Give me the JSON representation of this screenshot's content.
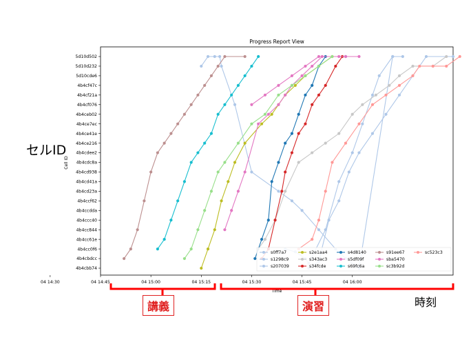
{
  "chart_data": {
    "type": "scatter",
    "title": "Progress Report View",
    "xlabel": "Time",
    "ylabel": "Cell ID",
    "x_ticks": [
      "04 14:30",
      "04 14:45",
      "04 15:00",
      "04 15:15",
      "04 15:30",
      "04 15:45",
      "04 16:00"
    ],
    "categories": [
      "5d10d502",
      "5d10d232",
      "5d10cde6",
      "4b4cf47c",
      "4b4cf21a",
      "4b4cf076",
      "4b4ceb02",
      "4b4ce7ec",
      "4b4ce41e",
      "4b4ce216",
      "4b4cdee2",
      "4b4cdc8a",
      "4b4cd938",
      "4b4cd41a",
      "4b4cd23a",
      "4b4ccf62",
      "4b4ccdda",
      "4b4ccc40",
      "4b4cc844",
      "4b4cc61e",
      "4b4cc0f6",
      "4b4cbdcc",
      "4b4cbb74"
    ],
    "legend_position": "lower-right",
    "grid": false,
    "series": [
      {
        "name": "s0ff7a7",
        "color": "#aec7e8",
        "points": [
          [
            40,
            20
          ],
          [
            43,
            20.3
          ],
          [
            46,
            21
          ],
          [
            47,
            21.5
          ],
          [
            52,
            18
          ],
          [
            56,
            13
          ],
          [
            60,
            10
          ],
          [
            63,
            7
          ],
          [
            66,
            4
          ],
          [
            68,
            2
          ],
          [
            72,
            0
          ]
        ]
      },
      {
        "name": "s1298c9",
        "color": "#aec7e8",
        "points": [
          [
            47,
            22
          ],
          [
            50,
            21.3
          ],
          [
            53,
            17
          ],
          [
            56,
            15
          ],
          [
            59,
            12
          ],
          [
            62,
            10
          ],
          [
            66,
            8
          ],
          [
            70,
            6
          ],
          [
            74,
            4
          ],
          [
            78,
            2
          ],
          [
            82,
            0
          ],
          [
            90,
            0
          ]
        ]
      },
      {
        "name": "s207039",
        "color": "#aec7e8",
        "points": [
          [
            15,
            1
          ],
          [
            17,
            0
          ],
          [
            19,
            0
          ],
          [
            20.5,
            0
          ],
          [
            21,
            1
          ],
          [
            25,
            5
          ],
          [
            30,
            12
          ],
          [
            38,
            14
          ],
          [
            42,
            15
          ],
          [
            45,
            16
          ],
          [
            50,
            18
          ],
          [
            55,
            20
          ],
          [
            58,
            21
          ],
          [
            62,
            22
          ],
          [
            72,
            0
          ],
          [
            75,
            0
          ]
        ]
      },
      {
        "name": "s2e1aa4",
        "color": "#bcbd22",
        "points": [
          [
            15,
            22
          ],
          [
            17,
            20
          ],
          [
            19,
            18
          ],
          [
            21,
            15
          ],
          [
            23,
            13
          ],
          [
            25,
            11
          ],
          [
            28,
            9
          ],
          [
            33,
            7
          ],
          [
            36,
            6
          ],
          [
            38,
            5
          ],
          [
            40,
            4
          ],
          [
            43,
            3
          ],
          [
            46,
            2
          ],
          [
            50,
            1
          ],
          [
            54,
            0
          ]
        ]
      },
      {
        "name": "s343ac3",
        "color": "#c7c7c7",
        "points": [
          [
            32,
            20
          ],
          [
            34,
            19
          ],
          [
            37,
            17
          ],
          [
            40,
            14
          ],
          [
            44,
            11
          ],
          [
            48,
            10
          ],
          [
            52,
            9
          ],
          [
            56,
            8
          ],
          [
            60,
            6
          ],
          [
            63,
            5
          ],
          [
            67,
            4
          ],
          [
            71,
            3
          ],
          [
            74,
            2
          ],
          [
            78,
            1
          ],
          [
            84,
            1
          ],
          [
            88,
            0
          ]
        ]
      },
      {
        "name": "s34fcde",
        "color": "#d62728",
        "points": [
          [
            33,
            21
          ],
          [
            35,
            20
          ],
          [
            37,
            17
          ],
          [
            39,
            14
          ],
          [
            40,
            12
          ],
          [
            42,
            10
          ],
          [
            44,
            8
          ],
          [
            46,
            7
          ],
          [
            48,
            5
          ],
          [
            50,
            4
          ],
          [
            52,
            3
          ],
          [
            55,
            1
          ],
          [
            57,
            0
          ]
        ]
      },
      {
        "name": "s4d8140",
        "color": "#1f77b4",
        "points": [
          [
            31,
            21
          ],
          [
            33,
            19
          ],
          [
            35,
            17
          ],
          [
            36,
            13
          ],
          [
            38,
            11
          ],
          [
            40,
            9
          ],
          [
            42,
            8
          ],
          [
            44,
            6
          ],
          [
            46,
            4
          ],
          [
            48,
            3
          ],
          [
            50,
            1
          ],
          [
            52,
            0
          ],
          [
            58,
            0
          ]
        ]
      },
      {
        "name": "s5df09f",
        "color": "#e377c2",
        "points": [
          [
            22,
            18
          ],
          [
            24,
            16
          ],
          [
            26,
            14
          ],
          [
            28,
            12
          ],
          [
            32,
            7
          ],
          [
            35,
            6
          ],
          [
            38,
            5
          ],
          [
            40,
            4
          ],
          [
            42,
            3
          ],
          [
            45,
            2
          ],
          [
            48,
            1
          ],
          [
            51,
            0
          ],
          [
            56,
            0
          ],
          [
            62,
            0
          ]
        ]
      },
      {
        "name": "s69fc6a",
        "color": "#17becf",
        "points": [
          [
            2,
            20
          ],
          [
            4,
            19
          ],
          [
            6,
            17
          ],
          [
            8,
            15
          ],
          [
            10,
            13
          ],
          [
            12,
            11
          ],
          [
            14,
            10
          ],
          [
            16,
            9
          ],
          [
            18,
            8
          ],
          [
            20,
            6
          ],
          [
            22,
            5
          ],
          [
            24,
            4
          ],
          [
            26,
            3
          ],
          [
            28,
            2
          ],
          [
            30,
            1
          ],
          [
            32,
            0
          ]
        ]
      },
      {
        "name": "s91ee67",
        "color": "#bc8f8f",
        "points": [
          [
            -8,
            21
          ],
          [
            -6,
            20
          ],
          [
            -4,
            18
          ],
          [
            -2,
            15
          ],
          [
            0,
            12
          ],
          [
            2,
            10
          ],
          [
            4,
            9
          ],
          [
            6,
            8
          ],
          [
            8,
            7
          ],
          [
            10,
            6
          ],
          [
            12,
            5
          ],
          [
            14,
            4
          ],
          [
            16,
            3
          ],
          [
            18,
            2
          ],
          [
            20,
            1
          ],
          [
            22,
            0
          ],
          [
            28,
            0
          ]
        ]
      },
      {
        "name": "sba5470",
        "color": "#e377c2",
        "points": [
          [
            30,
            5
          ],
          [
            34,
            4
          ],
          [
            38,
            3
          ],
          [
            42,
            2
          ],
          [
            46,
            1
          ],
          [
            50,
            0
          ],
          [
            58,
            0
          ]
        ]
      },
      {
        "name": "sc3b92d",
        "color": "#98df8a",
        "points": [
          [
            10,
            21
          ],
          [
            12,
            20
          ],
          [
            14,
            18
          ],
          [
            16,
            16
          ],
          [
            18,
            14
          ],
          [
            20,
            12
          ],
          [
            22,
            11
          ],
          [
            26,
            9
          ],
          [
            30,
            7
          ],
          [
            34,
            6
          ],
          [
            38,
            4
          ],
          [
            42,
            3
          ],
          [
            46,
            2
          ],
          [
            50,
            1
          ],
          [
            54,
            0
          ]
        ]
      },
      {
        "name": "sc523c3",
        "color": "#ff9896",
        "points": [
          [
            44,
            20
          ],
          [
            48,
            19
          ],
          [
            50,
            17
          ],
          [
            52,
            14
          ],
          [
            54,
            11
          ],
          [
            58,
            9
          ],
          [
            62,
            7
          ],
          [
            66,
            5
          ],
          [
            70,
            4
          ],
          [
            74,
            3
          ],
          [
            78,
            2
          ],
          [
            80,
            1
          ],
          [
            84,
            1
          ],
          [
            88,
            1
          ],
          [
            92,
            0
          ]
        ]
      }
    ]
  },
  "annotations": {
    "cell_id": "セルID",
    "time": "時刻",
    "lecture": "講義",
    "exercise": "演習"
  }
}
